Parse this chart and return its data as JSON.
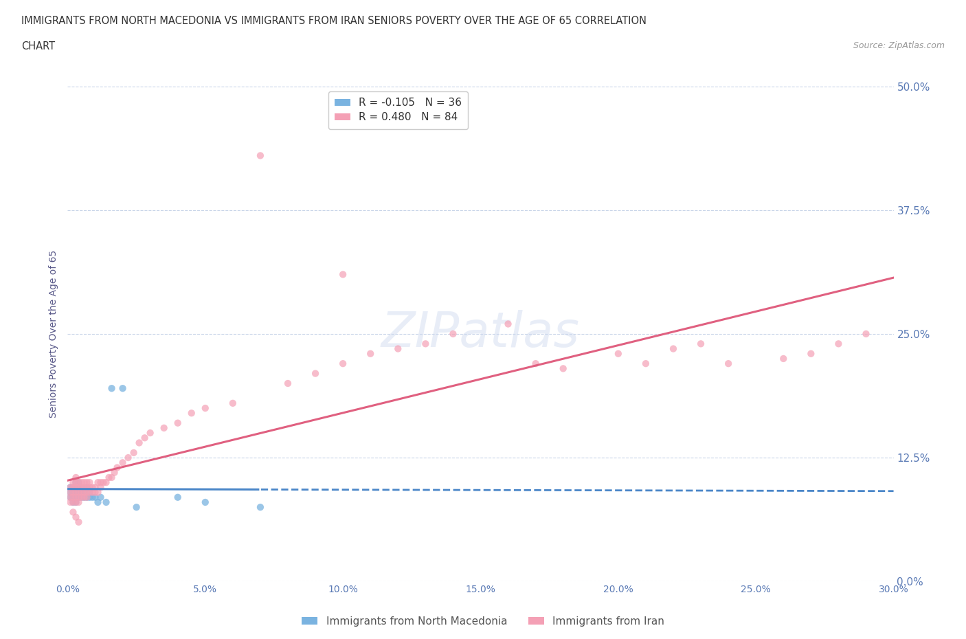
{
  "title_line1": "IMMIGRANTS FROM NORTH MACEDONIA VS IMMIGRANTS FROM IRAN SENIORS POVERTY OVER THE AGE OF 65 CORRELATION",
  "title_line2": "CHART",
  "source_text": "Source: ZipAtlas.com",
  "ylabel": "Seniors Poverty Over the Age of 65",
  "xlim": [
    0.0,
    0.3
  ],
  "ylim": [
    0.0,
    0.5
  ],
  "yticks": [
    0.0,
    0.125,
    0.25,
    0.375,
    0.5
  ],
  "ytick_labels": [
    "0.0%",
    "12.5%",
    "25.0%",
    "37.5%",
    "50.0%"
  ],
  "xticks": [
    0.0,
    0.05,
    0.1,
    0.15,
    0.2,
    0.25,
    0.3
  ],
  "xtick_labels": [
    "0.0%",
    "5.0%",
    "10.0%",
    "15.0%",
    "20.0%",
    "25.0%",
    "30.0%"
  ],
  "watermark": "ZIPatlas",
  "legend_entries": [
    {
      "label": "Immigrants from North Macedonia",
      "color": "#7ab3e0",
      "R": -0.105,
      "N": 36
    },
    {
      "label": "Immigrants from Iran",
      "color": "#f4a0b5",
      "R": 0.48,
      "N": 84
    }
  ],
  "series_macedonia": {
    "color": "#7ab3e0",
    "trend_color": "#4a86c8",
    "R": -0.105,
    "N": 36,
    "x": [
      0.001,
      0.001,
      0.001,
      0.002,
      0.002,
      0.002,
      0.002,
      0.003,
      0.003,
      0.003,
      0.003,
      0.003,
      0.004,
      0.004,
      0.004,
      0.004,
      0.005,
      0.005,
      0.005,
      0.006,
      0.006,
      0.007,
      0.007,
      0.008,
      0.008,
      0.009,
      0.01,
      0.011,
      0.012,
      0.014,
      0.016,
      0.02,
      0.025,
      0.04,
      0.05,
      0.07
    ],
    "y": [
      0.085,
      0.09,
      0.095,
      0.08,
      0.085,
      0.09,
      0.095,
      0.08,
      0.085,
      0.09,
      0.095,
      0.1,
      0.085,
      0.09,
      0.095,
      0.1,
      0.085,
      0.09,
      0.095,
      0.085,
      0.09,
      0.085,
      0.095,
      0.085,
      0.09,
      0.085,
      0.085,
      0.08,
      0.085,
      0.08,
      0.195,
      0.195,
      0.075,
      0.085,
      0.08,
      0.075
    ]
  },
  "series_iran": {
    "color": "#f4a0b5",
    "trend_color": "#e06080",
    "R": 0.48,
    "N": 84,
    "x": [
      0.001,
      0.001,
      0.001,
      0.001,
      0.002,
      0.002,
      0.002,
      0.002,
      0.002,
      0.003,
      0.003,
      0.003,
      0.003,
      0.003,
      0.003,
      0.004,
      0.004,
      0.004,
      0.004,
      0.004,
      0.005,
      0.005,
      0.005,
      0.005,
      0.006,
      0.006,
      0.006,
      0.006,
      0.007,
      0.007,
      0.007,
      0.007,
      0.008,
      0.008,
      0.008,
      0.009,
      0.009,
      0.01,
      0.01,
      0.011,
      0.011,
      0.012,
      0.012,
      0.013,
      0.014,
      0.015,
      0.016,
      0.017,
      0.018,
      0.02,
      0.022,
      0.024,
      0.026,
      0.028,
      0.03,
      0.035,
      0.04,
      0.045,
      0.05,
      0.06,
      0.07,
      0.08,
      0.09,
      0.1,
      0.11,
      0.12,
      0.13,
      0.14,
      0.16,
      0.17,
      0.18,
      0.2,
      0.21,
      0.22,
      0.23,
      0.24,
      0.26,
      0.27,
      0.28,
      0.29,
      0.002,
      0.003,
      0.004,
      0.1
    ],
    "y": [
      0.08,
      0.085,
      0.09,
      0.095,
      0.08,
      0.085,
      0.09,
      0.095,
      0.1,
      0.08,
      0.085,
      0.09,
      0.095,
      0.1,
      0.105,
      0.08,
      0.085,
      0.09,
      0.095,
      0.1,
      0.085,
      0.09,
      0.095,
      0.1,
      0.085,
      0.09,
      0.095,
      0.1,
      0.085,
      0.09,
      0.095,
      0.1,
      0.09,
      0.095,
      0.1,
      0.09,
      0.095,
      0.09,
      0.095,
      0.09,
      0.1,
      0.095,
      0.1,
      0.1,
      0.1,
      0.105,
      0.105,
      0.11,
      0.115,
      0.12,
      0.125,
      0.13,
      0.14,
      0.145,
      0.15,
      0.155,
      0.16,
      0.17,
      0.175,
      0.18,
      0.43,
      0.2,
      0.21,
      0.22,
      0.23,
      0.235,
      0.24,
      0.25,
      0.26,
      0.22,
      0.215,
      0.23,
      0.22,
      0.235,
      0.24,
      0.22,
      0.225,
      0.23,
      0.24,
      0.25,
      0.07,
      0.065,
      0.06,
      0.31
    ]
  },
  "background_color": "#ffffff",
  "grid_color": "#c8d4e8",
  "axis_label_color": "#5a5a8a",
  "tick_label_color": "#5a7ab5",
  "title_color": "#333333"
}
